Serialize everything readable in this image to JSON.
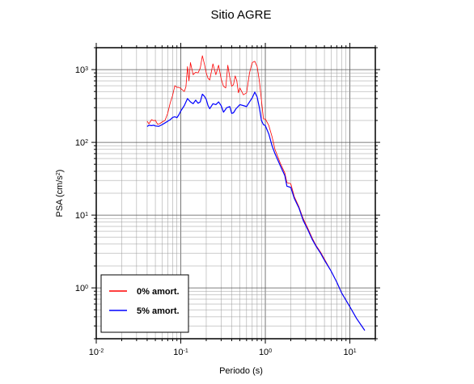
{
  "chart_data": {
    "type": "line",
    "title": "Sitio AGRE",
    "xlabel": "Periodo (s)",
    "ylabel_base": "PSA (cm/s",
    "ylabel_exp": "2",
    "ylabel_tail": ")",
    "xscale": "log",
    "yscale": "log",
    "xlim": [
      0.01,
      20
    ],
    "ylim": [
      0.2,
      2000
    ],
    "x_ticks": [
      {
        "base": "10",
        "exp": "-2",
        "value": 0.01
      },
      {
        "base": "10",
        "exp": "-1",
        "value": 0.1
      },
      {
        "base": "10",
        "exp": "0",
        "value": 1
      },
      {
        "base": "10",
        "exp": "1",
        "value": 10
      }
    ],
    "y_ticks": [
      {
        "base": "10",
        "exp": "0",
        "value": 1
      },
      {
        "base": "10",
        "exp": "1",
        "value": 10
      },
      {
        "base": "10",
        "exp": "2",
        "value": 100
      },
      {
        "base": "10",
        "exp": "3",
        "value": 1000
      }
    ],
    "grid": true,
    "legend_position": "bottom-left",
    "series": [
      {
        "name": "0% amort.",
        "color": "#ff0000",
        "points": [
          [
            0.04,
            195
          ],
          [
            0.042,
            180
          ],
          [
            0.045,
            205
          ],
          [
            0.048,
            198
          ],
          [
            0.05,
            202
          ],
          [
            0.053,
            178
          ],
          [
            0.056,
            180
          ],
          [
            0.06,
            190
          ],
          [
            0.065,
            200
          ],
          [
            0.07,
            250
          ],
          [
            0.075,
            350
          ],
          [
            0.08,
            440
          ],
          [
            0.085,
            600
          ],
          [
            0.09,
            570
          ],
          [
            0.095,
            570
          ],
          [
            0.1,
            550
          ],
          [
            0.11,
            500
          ],
          [
            0.115,
            580
          ],
          [
            0.12,
            1100
          ],
          [
            0.125,
            700
          ],
          [
            0.13,
            1250
          ],
          [
            0.14,
            850
          ],
          [
            0.15,
            920
          ],
          [
            0.16,
            900
          ],
          [
            0.17,
            1050
          ],
          [
            0.18,
            1550
          ],
          [
            0.19,
            1200
          ],
          [
            0.2,
            900
          ],
          [
            0.21,
            760
          ],
          [
            0.22,
            720
          ],
          [
            0.24,
            1200
          ],
          [
            0.26,
            850
          ],
          [
            0.28,
            1150
          ],
          [
            0.3,
            750
          ],
          [
            0.32,
            590
          ],
          [
            0.34,
            560
          ],
          [
            0.36,
            1150
          ],
          [
            0.38,
            780
          ],
          [
            0.4,
            590
          ],
          [
            0.42,
            620
          ],
          [
            0.44,
            820
          ],
          [
            0.46,
            700
          ],
          [
            0.48,
            480
          ],
          [
            0.5,
            560
          ],
          [
            0.55,
            450
          ],
          [
            0.6,
            480
          ],
          [
            0.65,
            900
          ],
          [
            0.7,
            1250
          ],
          [
            0.75,
            1300
          ],
          [
            0.8,
            1100
          ],
          [
            0.85,
            700
          ],
          [
            0.9,
            380
          ],
          [
            0.95,
            210
          ],
          [
            1.0,
            210
          ],
          [
            1.1,
            170
          ],
          [
            1.2,
            120
          ],
          [
            1.3,
            80
          ],
          [
            1.5,
            52
          ],
          [
            1.7,
            38
          ],
          [
            1.8,
            28
          ],
          [
            2.0,
            27
          ],
          [
            2.2,
            18
          ],
          [
            2.5,
            13
          ],
          [
            2.8,
            9
          ],
          [
            3.2,
            6.5
          ],
          [
            3.6,
            4.8
          ],
          [
            4.0,
            3.8
          ],
          [
            4.5,
            3.1
          ],
          [
            5.0,
            2.5
          ],
          [
            6.0,
            1.7
          ],
          [
            7.0,
            1.2
          ],
          [
            8.0,
            0.85
          ],
          [
            10.0,
            0.55
          ],
          [
            12.0,
            0.38
          ],
          [
            15.0,
            0.26
          ]
        ]
      },
      {
        "name": "5% amort.",
        "color": "#0000ff",
        "points": [
          [
            0.04,
            165
          ],
          [
            0.042,
            172
          ],
          [
            0.045,
            170
          ],
          [
            0.048,
            172
          ],
          [
            0.05,
            168
          ],
          [
            0.055,
            166
          ],
          [
            0.06,
            175
          ],
          [
            0.065,
            185
          ],
          [
            0.07,
            195
          ],
          [
            0.075,
            205
          ],
          [
            0.08,
            220
          ],
          [
            0.085,
            225
          ],
          [
            0.09,
            218
          ],
          [
            0.095,
            240
          ],
          [
            0.1,
            270
          ],
          [
            0.11,
            320
          ],
          [
            0.12,
            400
          ],
          [
            0.13,
            360
          ],
          [
            0.14,
            340
          ],
          [
            0.15,
            380
          ],
          [
            0.16,
            345
          ],
          [
            0.17,
            360
          ],
          [
            0.18,
            460
          ],
          [
            0.19,
            430
          ],
          [
            0.2,
            390
          ],
          [
            0.21,
            320
          ],
          [
            0.22,
            290
          ],
          [
            0.24,
            340
          ],
          [
            0.26,
            330
          ],
          [
            0.28,
            360
          ],
          [
            0.3,
            320
          ],
          [
            0.32,
            260
          ],
          [
            0.35,
            300
          ],
          [
            0.38,
            310
          ],
          [
            0.4,
            250
          ],
          [
            0.42,
            255
          ],
          [
            0.45,
            290
          ],
          [
            0.5,
            330
          ],
          [
            0.55,
            320
          ],
          [
            0.6,
            310
          ],
          [
            0.65,
            360
          ],
          [
            0.7,
            410
          ],
          [
            0.75,
            490
          ],
          [
            0.8,
            420
          ],
          [
            0.85,
            300
          ],
          [
            0.9,
            200
          ],
          [
            0.95,
            175
          ],
          [
            1.0,
            170
          ],
          [
            1.1,
            130
          ],
          [
            1.2,
            90
          ],
          [
            1.3,
            70
          ],
          [
            1.5,
            48
          ],
          [
            1.7,
            35
          ],
          [
            1.8,
            25
          ],
          [
            2.0,
            24
          ],
          [
            2.2,
            17
          ],
          [
            2.5,
            12.5
          ],
          [
            2.8,
            8.5
          ],
          [
            3.2,
            6.2
          ],
          [
            3.6,
            4.6
          ],
          [
            4.0,
            3.7
          ],
          [
            4.5,
            3.0
          ],
          [
            5.0,
            2.4
          ],
          [
            6.0,
            1.7
          ],
          [
            7.0,
            1.2
          ],
          [
            8.0,
            0.85
          ],
          [
            10.0,
            0.55
          ],
          [
            12.0,
            0.38
          ],
          [
            15.0,
            0.26
          ]
        ]
      }
    ]
  }
}
